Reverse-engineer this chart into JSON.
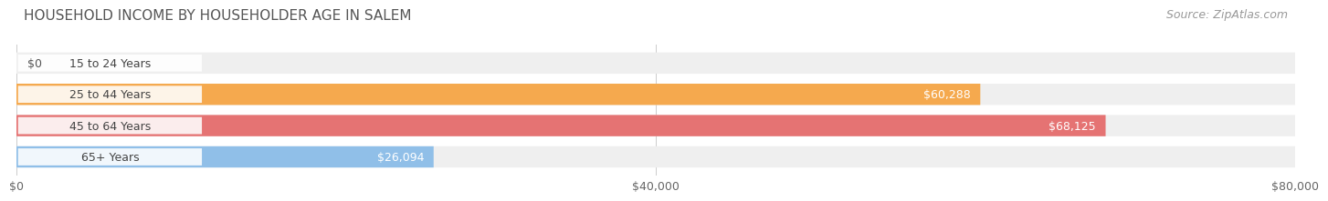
{
  "title": "HOUSEHOLD INCOME BY HOUSEHOLDER AGE IN SALEM",
  "source": "Source: ZipAtlas.com",
  "categories": [
    "15 to 24 Years",
    "25 to 44 Years",
    "45 to 64 Years",
    "65+ Years"
  ],
  "values": [
    0,
    60288,
    68125,
    26094
  ],
  "bar_colors": [
    "#f4a0b5",
    "#f5a94e",
    "#e57373",
    "#90bfe8"
  ],
  "bar_bg_color": "#efefef",
  "xlim": [
    0,
    80000
  ],
  "xticks": [
    0,
    40000,
    80000
  ],
  "xtick_labels": [
    "$0",
    "$40,000",
    "$80,000"
  ],
  "background_color": "#ffffff",
  "title_fontsize": 11,
  "source_fontsize": 9,
  "bar_label_fontsize": 9,
  "value_label_fontsize": 9,
  "xtick_fontsize": 9,
  "bar_height": 0.68,
  "bar_gap": 0.1
}
